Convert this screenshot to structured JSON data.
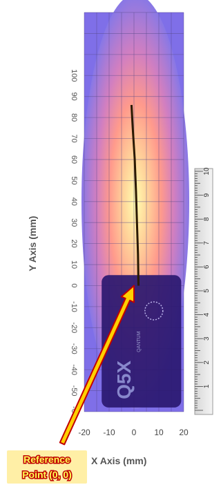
{
  "chart_data": {
    "type": "heatmap",
    "xlabel": "X Axis (mm)",
    "ylabel": "Y Axis (mm)",
    "xlim": [
      -20,
      20
    ],
    "ylim": [
      -60,
      130
    ],
    "x_ticks": [
      -20,
      -10,
      0,
      10,
      20
    ],
    "y_ticks": [
      -60,
      -50,
      -40,
      -30,
      -20,
      -10,
      0,
      10,
      20,
      30,
      40,
      50,
      60,
      70,
      80,
      90,
      100
    ],
    "grid": true,
    "colormap": [
      "#7f6fe8",
      "#c27ac8",
      "#ff8a8a",
      "#ffc89a",
      "#ffffb0"
    ],
    "annotation": {
      "lines": [
        "Reference",
        "Point (0, 0)"
      ],
      "target": {
        "x": 0,
        "y": 0
      },
      "fill": "#ffd000",
      "outline": "#c00000"
    },
    "device_trace": [
      {
        "x": 1.8,
        "y": 0
      },
      {
        "x": 1.6,
        "y": 15
      },
      {
        "x": 1.2,
        "y": 30
      },
      {
        "x": 0.8,
        "y": 45
      },
      {
        "x": 0.3,
        "y": 60
      },
      {
        "x": -0.5,
        "y": 75
      },
      {
        "x": -1.0,
        "y": 86
      }
    ],
    "device": {
      "label": "Q5X",
      "sublabel": "QANTUM",
      "color": "#2a1870"
    },
    "ruler": {
      "labels": [
        "1",
        "2",
        "3",
        "4",
        "5",
        "6",
        "7",
        "8",
        "9",
        "10"
      ]
    }
  }
}
